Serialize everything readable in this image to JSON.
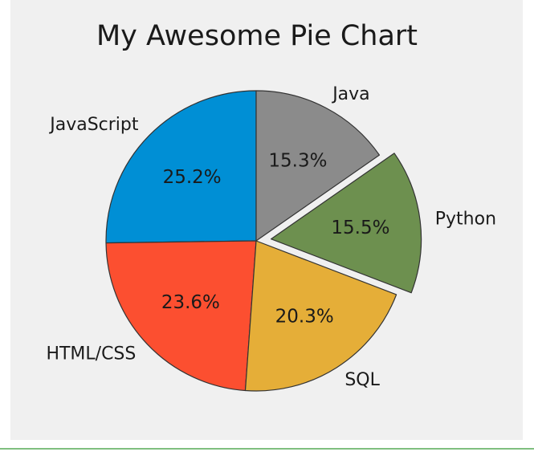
{
  "chart_data": {
    "type": "pie",
    "title": "My Awesome Pie Chart",
    "start_angle_deg": 90,
    "direction": "counterclockwise",
    "slices": [
      {
        "label": "JavaScript",
        "value": 25.2,
        "pct_label": "25.2%",
        "color": "#008fd5",
        "explode": 0
      },
      {
        "label": "HTML/CSS",
        "value": 23.6,
        "pct_label": "23.6%",
        "color": "#fc4f30",
        "explode": 0
      },
      {
        "label": "SQL",
        "value": 20.3,
        "pct_label": "20.3%",
        "color": "#e5ae38",
        "explode": 0
      },
      {
        "label": "Python",
        "value": 15.5,
        "pct_label": "15.5%",
        "color": "#6d904f",
        "explode": 0.1
      },
      {
        "label": "Java",
        "value": 15.3,
        "pct_label": "15.3%",
        "color": "#8b8b8b",
        "explode": 0
      }
    ],
    "edgecolor": "#333333",
    "background": "#f0f0f0"
  }
}
